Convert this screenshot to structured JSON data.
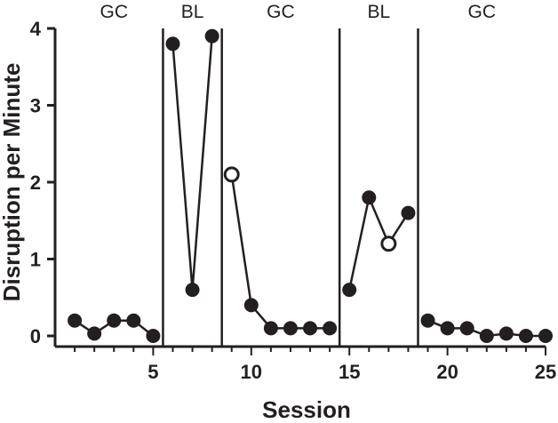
{
  "chart_data": {
    "type": "line",
    "xlabel": "Session",
    "ylabel": "Disruption per Minute",
    "xlim": [
      0,
      25
    ],
    "ylim": [
      0,
      4
    ],
    "x_ticks": [
      5,
      10,
      15,
      20,
      25
    ],
    "y_ticks": [
      0,
      1,
      2,
      3,
      4
    ],
    "phase_change_lines": [
      5.5,
      8.5,
      14.5,
      18.5
    ],
    "phases": [
      {
        "label": "GC",
        "start": 0.5,
        "end": 5.5
      },
      {
        "label": "BL",
        "start": 5.5,
        "end": 8.5
      },
      {
        "label": "GC",
        "start": 8.5,
        "end": 14.5
      },
      {
        "label": "BL",
        "start": 14.5,
        "end": 18.5
      },
      {
        "label": "GC",
        "start": 18.5,
        "end": 25.0
      }
    ],
    "segments": [
      {
        "points": [
          [
            1,
            0.2
          ],
          [
            2,
            0.03
          ],
          [
            3,
            0.2
          ],
          [
            4,
            0.2
          ],
          [
            5,
            0.0
          ]
        ]
      },
      {
        "points": [
          [
            6,
            3.8
          ],
          [
            7,
            0.6
          ],
          [
            8,
            3.9
          ]
        ]
      },
      {
        "points": [
          [
            9,
            2.1
          ],
          [
            10,
            0.4
          ],
          [
            11,
            0.1
          ],
          [
            12,
            0.1
          ],
          [
            13,
            0.1
          ],
          [
            14,
            0.1
          ]
        ]
      },
      {
        "points": [
          [
            15,
            0.6
          ],
          [
            16,
            1.8
          ],
          [
            17,
            1.2
          ],
          [
            18,
            1.6
          ]
        ]
      },
      {
        "points": [
          [
            19,
            0.2
          ],
          [
            20,
            0.1
          ],
          [
            21,
            0.1
          ],
          [
            22,
            0.0
          ],
          [
            23,
            0.03
          ],
          [
            24,
            0.0
          ],
          [
            25,
            0.0
          ]
        ]
      }
    ],
    "open_markers": [
      9,
      17
    ],
    "grid": false,
    "colors": {
      "ink": "#231f20",
      "open_fill": "#ffffff"
    }
  }
}
